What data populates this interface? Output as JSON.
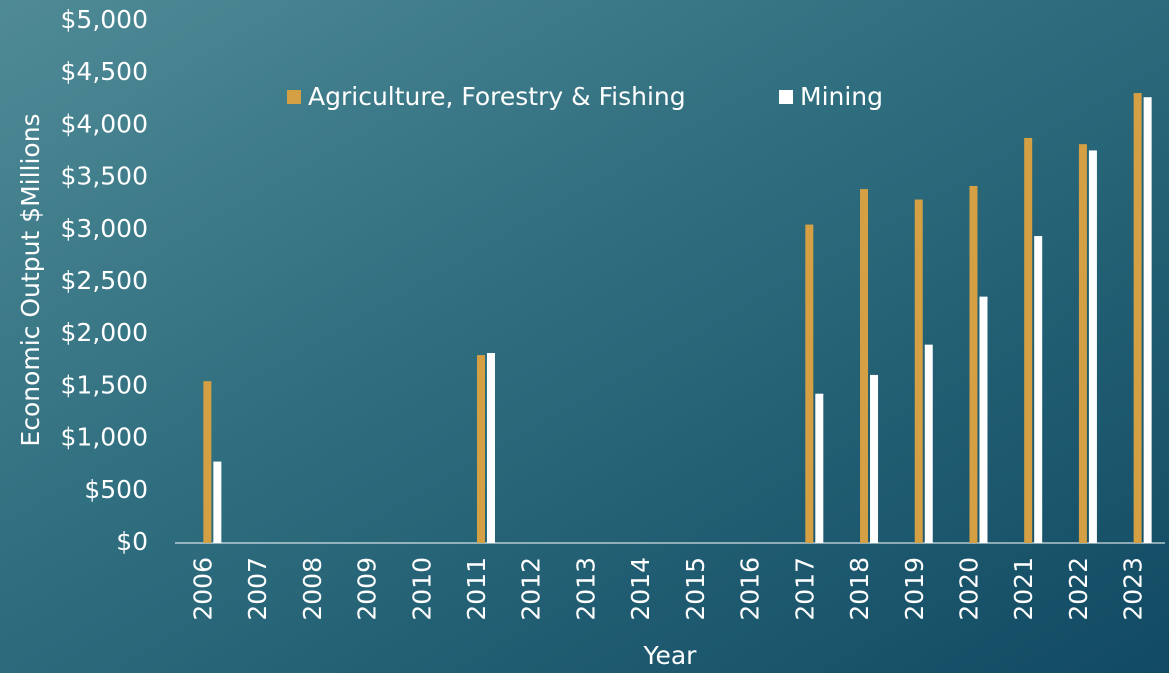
{
  "chart_data": {
    "type": "bar",
    "x_label": "Year",
    "y_label": "Economic Output $Millions",
    "categories": [
      "2006",
      "2007",
      "2008",
      "2009",
      "2010",
      "2011",
      "2012",
      "2013",
      "2014",
      "2015",
      "2016",
      "2017",
      "2018",
      "2019",
      "2020",
      "2021",
      "2022",
      "2023"
    ],
    "series": [
      {
        "name": "Agriculture, Forestry & Fishing",
        "color": "#d4a043",
        "values": [
          1550,
          null,
          null,
          null,
          null,
          1800,
          null,
          null,
          null,
          null,
          null,
          3050,
          3390,
          3290,
          3420,
          3880,
          3820,
          4310
        ]
      },
      {
        "name": "Mining",
        "color": "#ffffff",
        "values": [
          780,
          null,
          null,
          null,
          null,
          1820,
          null,
          null,
          null,
          null,
          null,
          1430,
          1610,
          1900,
          2360,
          2940,
          3760,
          4270
        ]
      }
    ],
    "ylim": [
      0,
      5000
    ],
    "yticks": [
      {
        "value": 0,
        "label": "$0"
      },
      {
        "value": 500,
        "label": "$500"
      },
      {
        "value": 1000,
        "label": "$1,000"
      },
      {
        "value": 1500,
        "label": "$1,500"
      },
      {
        "value": 2000,
        "label": "$2,000"
      },
      {
        "value": 2500,
        "label": "$2,500"
      },
      {
        "value": 3000,
        "label": "$3,000"
      },
      {
        "value": 3500,
        "label": "$3,500"
      },
      {
        "value": 4000,
        "label": "$4,000"
      },
      {
        "value": 4500,
        "label": "$4,500"
      },
      {
        "value": 5000,
        "label": "$5,000"
      }
    ],
    "grid": false
  }
}
